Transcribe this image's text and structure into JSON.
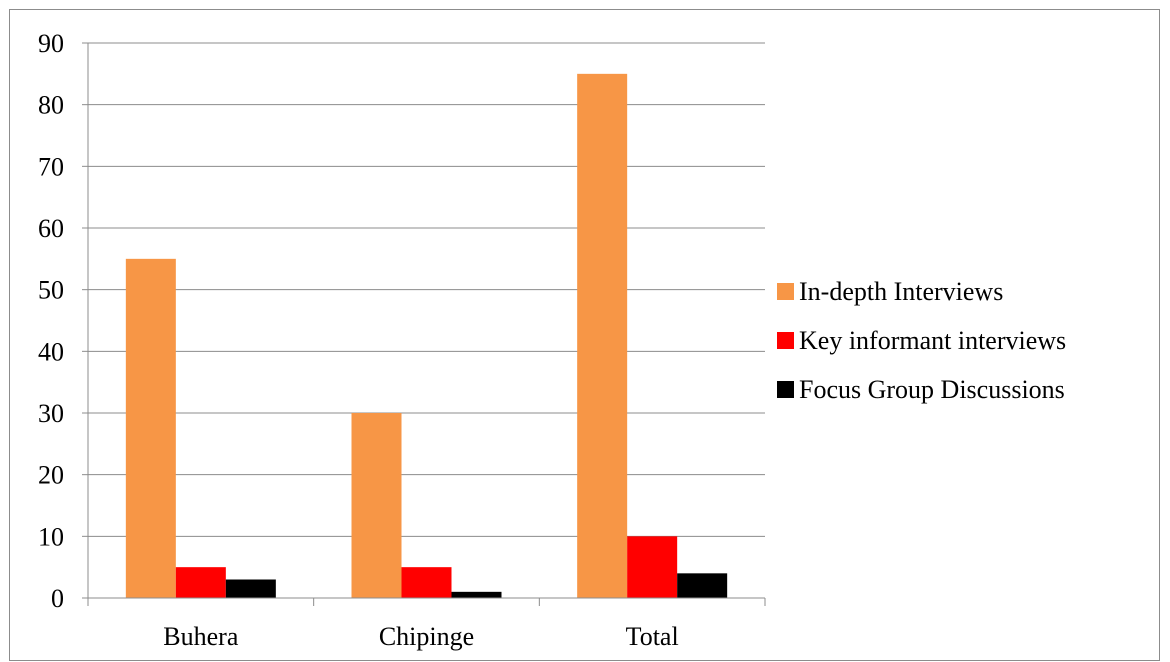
{
  "chart_data": {
    "type": "bar",
    "categories": [
      "Buhera",
      "Chipinge",
      "Total"
    ],
    "series": [
      {
        "name": "In-depth Interviews",
        "values": [
          55,
          30,
          85
        ],
        "color": "#f79646"
      },
      {
        "name": "Key informant interviews",
        "values": [
          5,
          5,
          10
        ],
        "color": "#ff0000"
      },
      {
        "name": "Focus Group Discussions",
        "values": [
          3,
          1,
          4
        ],
        "color": "#000000"
      }
    ],
    "ylim": [
      0,
      90
    ],
    "yticks": [
      0,
      10,
      20,
      30,
      40,
      50,
      60,
      70,
      80,
      90
    ],
    "grid": true,
    "legend_position": "right",
    "title": "",
    "xlabel": "",
    "ylabel": ""
  }
}
